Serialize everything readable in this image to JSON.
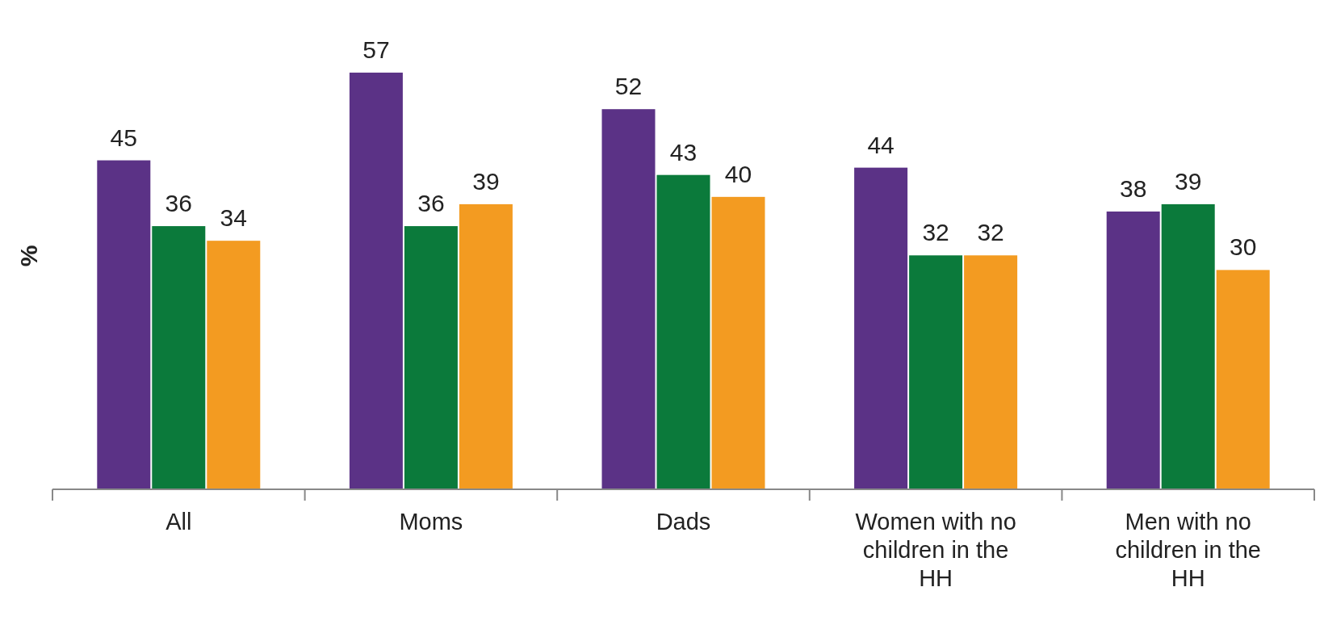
{
  "chart_data": {
    "type": "bar",
    "ylabel": "%",
    "categories": [
      "All",
      "Moms",
      "Dads",
      "Women with no children in the HH",
      "Men with no children in the HH"
    ],
    "series": [
      {
        "color": "#5b3286",
        "values": [
          45,
          57,
          52,
          44,
          38
        ]
      },
      {
        "color": "#0b7a3b",
        "values": [
          36,
          36,
          43,
          32,
          39
        ]
      },
      {
        "color": "#f39b21",
        "values": [
          34,
          39,
          40,
          32,
          30
        ]
      }
    ],
    "data_labels": true
  }
}
